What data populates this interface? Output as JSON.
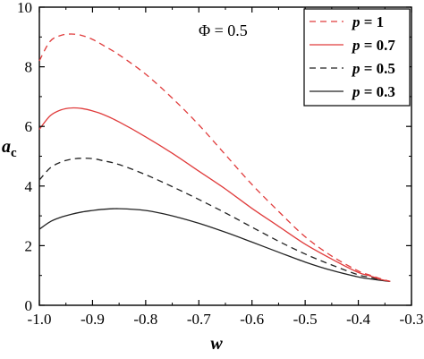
{
  "chart_data": {
    "type": "line",
    "xlabel": "w",
    "ylabel_main": "a",
    "ylabel_sub": "c",
    "xlim": [
      -1.0,
      -0.3
    ],
    "ylim": [
      0,
      10
    ],
    "xticks": [
      -1.0,
      -0.9,
      -0.8,
      -0.7,
      -0.6,
      -0.5,
      -0.4,
      -0.3
    ],
    "xtick_labels": [
      "-1.0",
      "-0.9",
      "-0.8",
      "-0.7",
      "-0.6",
      "-0.5",
      "-0.4",
      "-0.3"
    ],
    "yticks": [
      0,
      2,
      4,
      6,
      8,
      10
    ],
    "ytick_labels": [
      "0",
      "2",
      "4",
      "6",
      "8",
      "10"
    ],
    "annotation": "Φ = 0.5",
    "legend_position": "top-right",
    "series": [
      {
        "name": "p = 1",
        "legend_var": "p",
        "legend_val": "= 1",
        "color": "#e03c3c",
        "dash": "dashed",
        "x": [
          -1.0,
          -0.98,
          -0.96,
          -0.94,
          -0.92,
          -0.9,
          -0.88,
          -0.85,
          -0.8,
          -0.75,
          -0.7,
          -0.65,
          -0.6,
          -0.55,
          -0.5,
          -0.45,
          -0.4,
          -0.38,
          -0.36,
          -0.34
        ],
        "y": [
          8.2,
          8.85,
          9.05,
          9.1,
          9.05,
          8.92,
          8.72,
          8.4,
          7.75,
          6.95,
          6.05,
          5.05,
          4.05,
          3.15,
          2.3,
          1.65,
          1.15,
          1.02,
          0.9,
          0.8
        ]
      },
      {
        "name": "p = 0.7",
        "legend_var": "p",
        "legend_val": "= 0.7",
        "color": "#e03c3c",
        "dash": "solid",
        "x": [
          -1.0,
          -0.98,
          -0.96,
          -0.94,
          -0.92,
          -0.9,
          -0.88,
          -0.85,
          -0.8,
          -0.75,
          -0.7,
          -0.65,
          -0.6,
          -0.55,
          -0.5,
          -0.45,
          -0.4,
          -0.38,
          -0.36,
          -0.34
        ],
        "y": [
          5.9,
          6.35,
          6.55,
          6.62,
          6.6,
          6.52,
          6.4,
          6.15,
          5.65,
          5.1,
          4.5,
          3.9,
          3.25,
          2.65,
          2.05,
          1.55,
          1.1,
          1.0,
          0.88,
          0.8
        ]
      },
      {
        "name": "p = 0.5",
        "legend_var": "p",
        "legend_val": "= 0.5",
        "color": "#222222",
        "dash": "dashed",
        "x": [
          -1.0,
          -0.98,
          -0.96,
          -0.94,
          -0.92,
          -0.9,
          -0.88,
          -0.85,
          -0.8,
          -0.75,
          -0.7,
          -0.65,
          -0.6,
          -0.55,
          -0.5,
          -0.45,
          -0.4,
          -0.38,
          -0.36,
          -0.34
        ],
        "y": [
          4.2,
          4.6,
          4.8,
          4.9,
          4.93,
          4.92,
          4.85,
          4.72,
          4.38,
          3.98,
          3.55,
          3.1,
          2.62,
          2.15,
          1.72,
          1.35,
          1.02,
          0.95,
          0.86,
          0.8
        ]
      },
      {
        "name": "p = 0.3",
        "legend_var": "p",
        "legend_val": "= 0.3",
        "color": "#222222",
        "dash": "solid",
        "x": [
          -1.0,
          -0.98,
          -0.96,
          -0.94,
          -0.92,
          -0.9,
          -0.88,
          -0.85,
          -0.8,
          -0.75,
          -0.7,
          -0.65,
          -0.6,
          -0.55,
          -0.5,
          -0.45,
          -0.4,
          -0.38,
          -0.36,
          -0.34
        ],
        "y": [
          2.55,
          2.8,
          2.95,
          3.05,
          3.13,
          3.18,
          3.22,
          3.24,
          3.18,
          3.0,
          2.75,
          2.45,
          2.12,
          1.78,
          1.45,
          1.17,
          0.95,
          0.89,
          0.84,
          0.8
        ]
      }
    ]
  }
}
